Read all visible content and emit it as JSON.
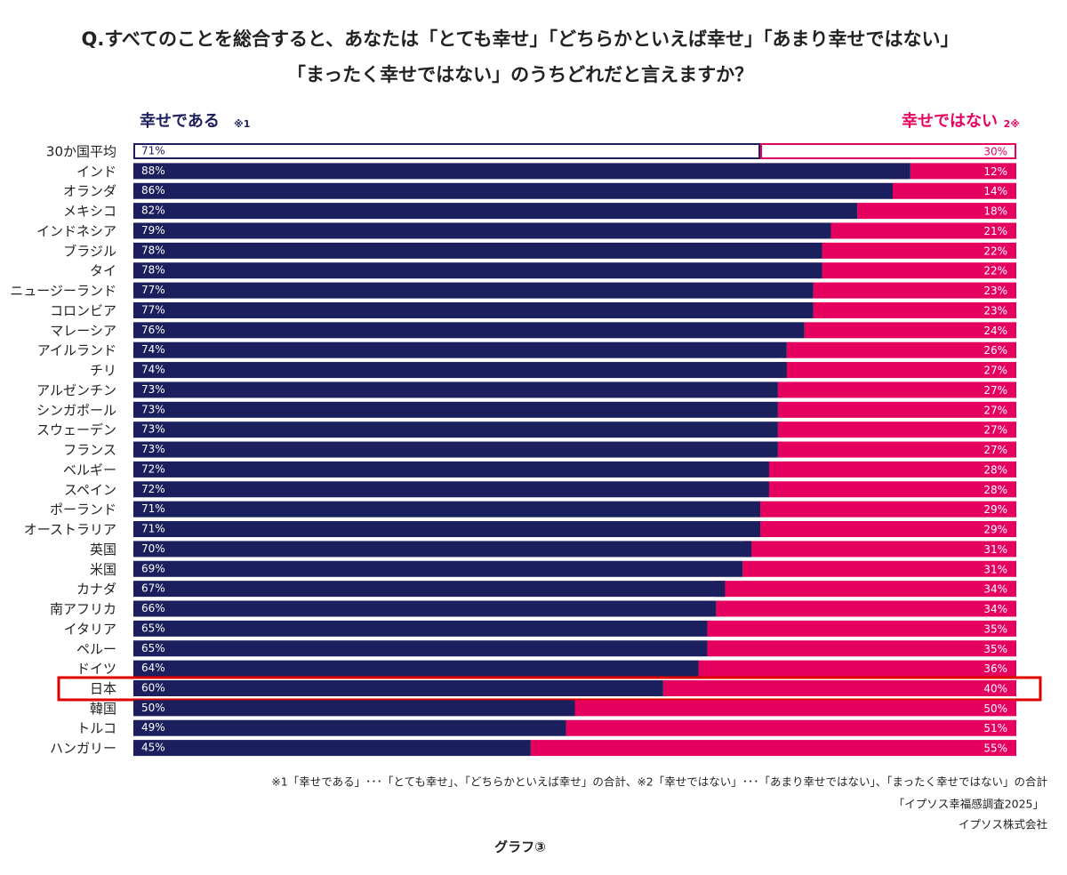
{
  "chart_data": {
    "type": "stacked-bar-100",
    "title": [
      "Q.すべてのことを総合すると、あなたは「とても幸せ」「どちらかといえば幸せ」「あまり幸せではない」",
      "「まったく幸せではない」のうちどれだと言えますか？"
    ],
    "categories": [
      "30か国平均",
      "インド",
      "オランダ",
      "メキシコ",
      "インドネシア",
      "ブラジル",
      "タイ",
      "ニュージーランド",
      "コロンビア",
      "マレーシア",
      "アイルランド",
      "チリ",
      "アルゼンチン",
      "シンガポール",
      "スウェーデン",
      "フランス",
      "ベルギー",
      "スペイン",
      "ポーランド",
      "オーストラリア",
      "英国",
      "米国",
      "カナダ",
      "南アフリカ",
      "イタリア",
      "ペルー",
      "ドイツ",
      "日本",
      "韓国",
      "トルコ",
      "ハンガリー"
    ],
    "series": [
      {
        "name": "幸せである",
        "note": "※1",
        "color": "#1c1f5e",
        "values": [
          71,
          88,
          86,
          82,
          79,
          78,
          78,
          77,
          77,
          76,
          74,
          74,
          73,
          73,
          73,
          73,
          72,
          72,
          71,
          71,
          70,
          69,
          67,
          66,
          65,
          65,
          64,
          60,
          50,
          49,
          45
        ],
        "value_labels": [
          "71%",
          "88%",
          "86%",
          "82%",
          "79%",
          "78%",
          "78%",
          "77%",
          "77%",
          "76%",
          "74%",
          "74%",
          "73%",
          "73%",
          "73%",
          "73%",
          "72%",
          "72%",
          "71%",
          "71%",
          "70%",
          "69%",
          "67%",
          "66%",
          "65%",
          "65%",
          "64%",
          "60%",
          "50%",
          "49%",
          "45%"
        ]
      },
      {
        "name": "幸せではない",
        "note": "2※",
        "color": "#e5005f",
        "values": [
          30,
          12,
          14,
          18,
          21,
          22,
          22,
          23,
          23,
          24,
          26,
          27,
          27,
          27,
          27,
          27,
          28,
          28,
          29,
          29,
          31,
          31,
          34,
          34,
          35,
          35,
          36,
          40,
          50,
          51,
          55
        ],
        "value_labels": [
          "30%",
          "12%",
          "14%",
          "18%",
          "21%",
          "22%",
          "22%",
          "23%",
          "23%",
          "24%",
          "26%",
          "27%",
          "27%",
          "27%",
          "27%",
          "27%",
          "28%",
          "28%",
          "29%",
          "29%",
          "31%",
          "31%",
          "34%",
          "34%",
          "35%",
          "35%",
          "36%",
          "40%",
          "50%",
          "51%",
          "55%"
        ]
      }
    ],
    "xlim": [
      0,
      100
    ],
    "outlined_category": "30か国平均",
    "highlight": "日本",
    "highlight_color": "#e00000",
    "notes": [
      "※1「幸せである」･･･「とても幸せ」、「どちらかといえば幸せ」の合計、※2「幸せではない」･･･「あまり幸せではない」、「まったく幸せではない」の合計",
      "「イプソス幸福感調査2025」",
      "イプソス株式会社"
    ],
    "caption": "グラフ③"
  }
}
